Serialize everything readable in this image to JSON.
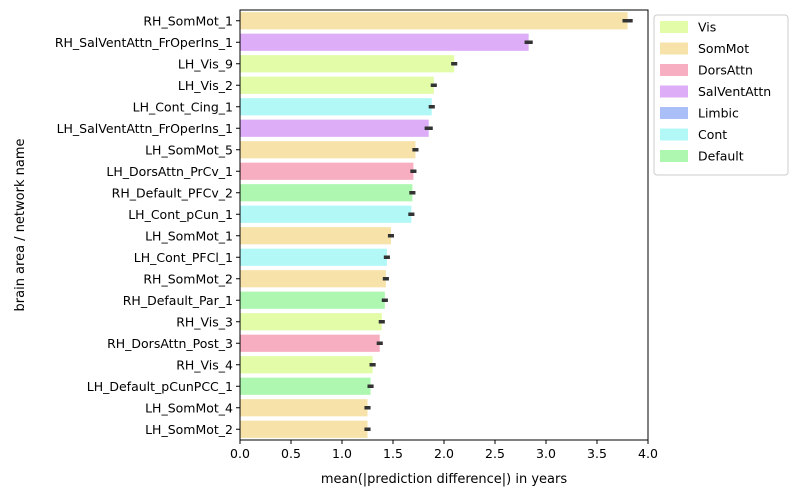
{
  "chart_data": {
    "type": "bar",
    "orientation": "horizontal",
    "xlabel": "mean(|prediction difference|) in years",
    "ylabel": "brain area / network name",
    "xlim": [
      0,
      4
    ],
    "xticks": [
      "0.0",
      "0.5",
      "1.0",
      "1.5",
      "2.0",
      "2.5",
      "3.0",
      "3.5",
      "4.0"
    ],
    "grid": false,
    "legend_position": "top-right outside",
    "legend": [
      {
        "name": "Vis",
        "color": "#e2fca8"
      },
      {
        "name": "SomMot",
        "color": "#f7e3aa"
      },
      {
        "name": "DorsAttn",
        "color": "#f7aec1"
      },
      {
        "name": "SalVentAttn",
        "color": "#ddaef7"
      },
      {
        "name": "Limbic",
        "color": "#aabff7"
      },
      {
        "name": "Cont",
        "color": "#b1f8f7"
      },
      {
        "name": "Default",
        "color": "#aef7b1"
      }
    ],
    "bars": [
      {
        "label": "RH_SomMot_1",
        "network": "SomMot",
        "value": 3.8,
        "err": 0.05
      },
      {
        "label": "RH_SalVentAttn_FrOperIns_1",
        "network": "SalVentAttn",
        "value": 2.83,
        "err": 0.04
      },
      {
        "label": "LH_Vis_9",
        "network": "Vis",
        "value": 2.1,
        "err": 0.03
      },
      {
        "label": "LH_Vis_2",
        "network": "Vis",
        "value": 1.9,
        "err": 0.03
      },
      {
        "label": "LH_Cont_Cing_1",
        "network": "Cont",
        "value": 1.88,
        "err": 0.03
      },
      {
        "label": "LH_SalVentAttn_FrOperIns_1",
        "network": "SalVentAttn",
        "value": 1.85,
        "err": 0.04
      },
      {
        "label": "LH_SomMot_5",
        "network": "SomMot",
        "value": 1.72,
        "err": 0.03
      },
      {
        "label": "LH_DorsAttn_PrCv_1",
        "network": "DorsAttn",
        "value": 1.7,
        "err": 0.03
      },
      {
        "label": "RH_Default_PFCv_2",
        "network": "Default",
        "value": 1.69,
        "err": 0.03
      },
      {
        "label": "LH_Cont_pCun_1",
        "network": "Cont",
        "value": 1.68,
        "err": 0.03
      },
      {
        "label": "LH_SomMot_1",
        "network": "SomMot",
        "value": 1.48,
        "err": 0.03
      },
      {
        "label": "LH_Cont_PFCl_1",
        "network": "Cont",
        "value": 1.44,
        "err": 0.03
      },
      {
        "label": "RH_SomMot_2",
        "network": "SomMot",
        "value": 1.43,
        "err": 0.03
      },
      {
        "label": "RH_Default_Par_1",
        "network": "Default",
        "value": 1.42,
        "err": 0.03
      },
      {
        "label": "RH_Vis_3",
        "network": "Vis",
        "value": 1.39,
        "err": 0.03
      },
      {
        "label": "RH_DorsAttn_Post_3",
        "network": "DorsAttn",
        "value": 1.37,
        "err": 0.03
      },
      {
        "label": "RH_Vis_4",
        "network": "Vis",
        "value": 1.3,
        "err": 0.03
      },
      {
        "label": "LH_Default_pCunPCC_1",
        "network": "Default",
        "value": 1.28,
        "err": 0.03
      },
      {
        "label": "LH_SomMot_4",
        "network": "SomMot",
        "value": 1.25,
        "err": 0.03
      },
      {
        "label": "LH_SomMot_2",
        "network": "SomMot",
        "value": 1.25,
        "err": 0.03
      }
    ]
  }
}
